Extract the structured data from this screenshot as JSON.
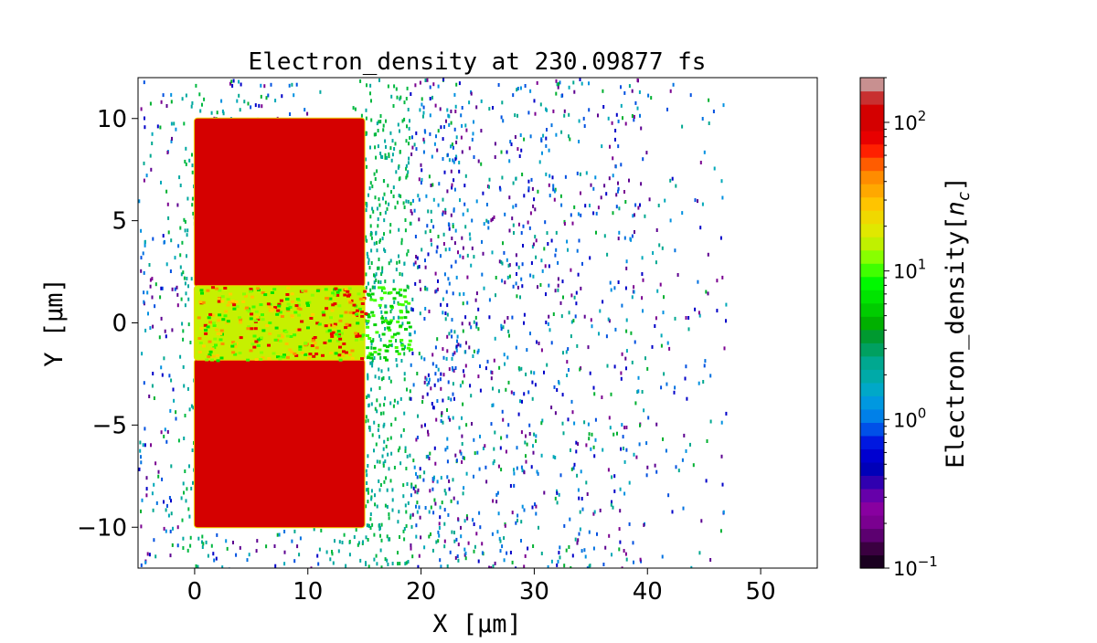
{
  "chart_data": {
    "type": "heatmap",
    "title": "Electron_density at 230.09877 fs",
    "xlabel": "X [μm]",
    "ylabel": "Y [μm]",
    "xlim": [
      -5,
      55
    ],
    "ylim": [
      -12,
      12
    ],
    "xticks": [
      {
        "value": 0,
        "label": "0"
      },
      {
        "value": 10,
        "label": "10"
      },
      {
        "value": 20,
        "label": "20"
      },
      {
        "value": 30,
        "label": "30"
      },
      {
        "value": 40,
        "label": "40"
      },
      {
        "value": 50,
        "label": "50"
      }
    ],
    "yticks": [
      {
        "value": 10,
        "label": "10"
      },
      {
        "value": 5,
        "label": "5"
      },
      {
        "value": 0,
        "label": "0"
      },
      {
        "value": -5,
        "label": "−5"
      },
      {
        "value": -10,
        "label": "−10"
      }
    ],
    "grid": false,
    "regions": [
      {
        "x": [
          0,
          15
        ],
        "y": [
          1.8,
          10
        ],
        "density": 150,
        "color": "#d50000"
      },
      {
        "x": [
          0,
          15
        ],
        "y": [
          -10,
          -1.8
        ],
        "density": 150,
        "color": "#d50000"
      },
      {
        "x": [
          0,
          15
        ],
        "y": [
          -1.8,
          1.8
        ],
        "density": 15,
        "color": "#c6f000"
      }
    ],
    "colorbar": {
      "label": "Electron_density",
      "unit_symbol": "n",
      "unit_subscript": "c",
      "scale": "log",
      "range": [
        0.1,
        200
      ],
      "ticks": [
        {
          "value": 0.1,
          "base": "10",
          "exp": "−1"
        },
        {
          "value": 1,
          "base": "10",
          "exp": "0"
        },
        {
          "value": 10,
          "base": "10",
          "exp": "1"
        },
        {
          "value": 100,
          "base": "10",
          "exp": "2"
        }
      ],
      "colors": [
        "#1a0020",
        "#3a0040",
        "#5c0070",
        "#7a0090",
        "#8800a0",
        "#6600aa",
        "#3000b0",
        "#0000b8",
        "#0000d0",
        "#0018e0",
        "#0050e8",
        "#0080e8",
        "#0098e0",
        "#00a8c8",
        "#00aaa8",
        "#00a890",
        "#00a060",
        "#009a30",
        "#00b000",
        "#00cc00",
        "#00e400",
        "#00f800",
        "#40ff00",
        "#88ff00",
        "#c0f000",
        "#e0e800",
        "#f0d800",
        "#ffc400",
        "#ffa800",
        "#ff8c00",
        "#ff5c00",
        "#ff2000",
        "#e80000",
        "#d40000",
        "#d40000",
        "#c83030",
        "#c89090"
      ]
    }
  }
}
